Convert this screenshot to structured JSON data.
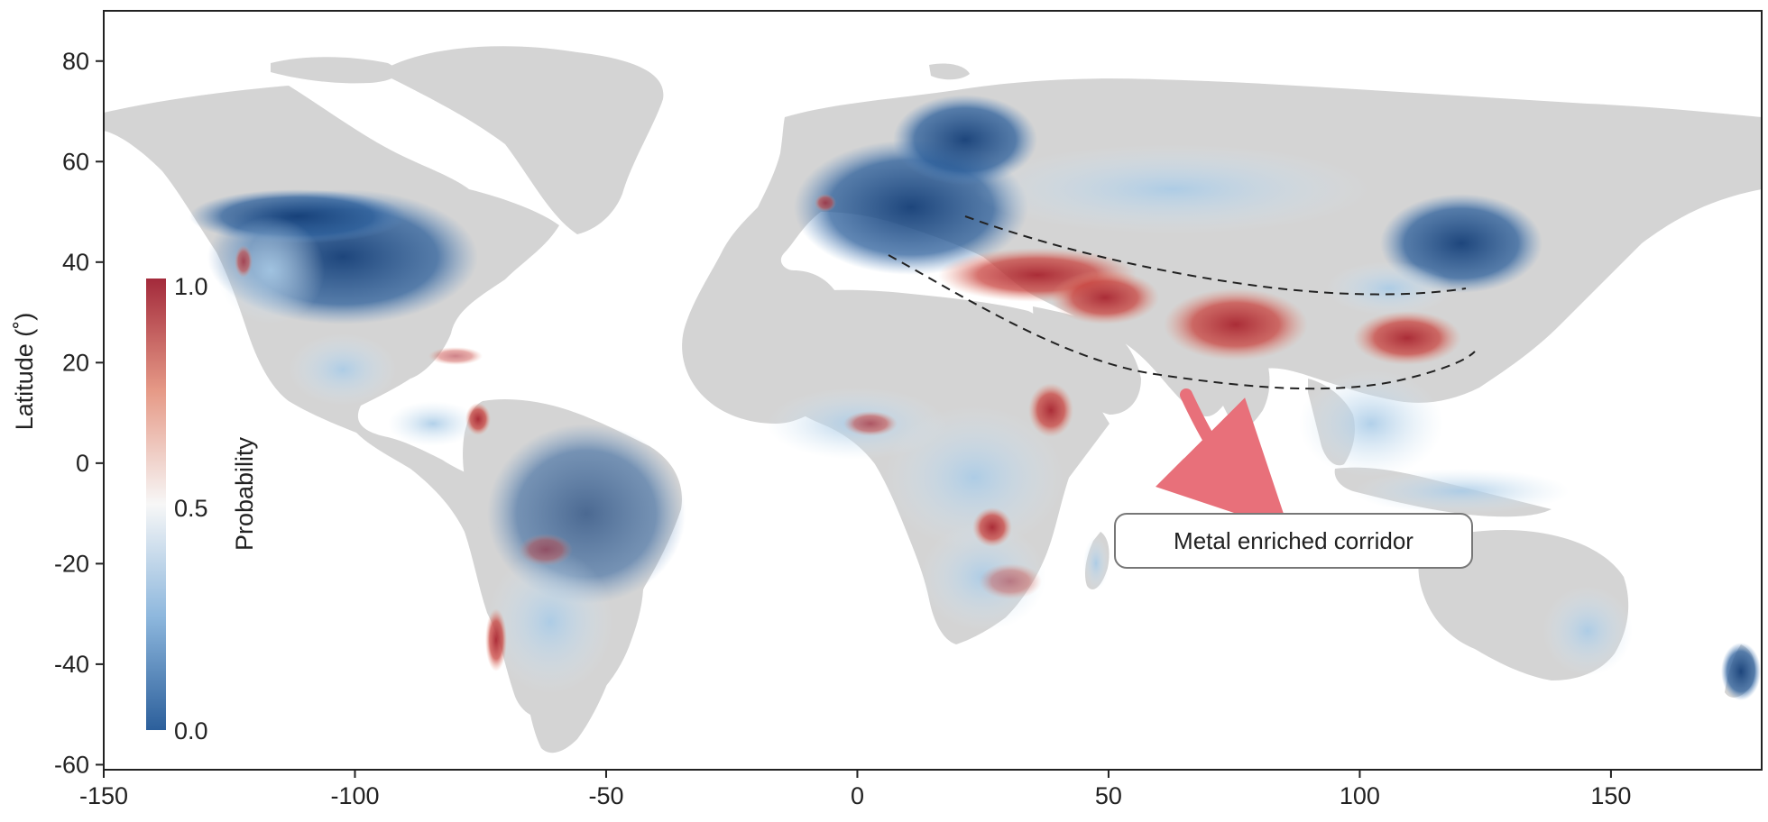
{
  "map": {
    "y_axis_label": "Latitude (˚)",
    "x_ticks": [
      "-150",
      "-100",
      "-50",
      "0",
      "50",
      "100",
      "150"
    ],
    "y_ticks": [
      "80",
      "60",
      "40",
      "20",
      "0",
      "-20",
      "-40",
      "-60"
    ],
    "x_range": [
      -150,
      180
    ],
    "y_range": [
      -61,
      90
    ],
    "land_color": "#d4d4d4",
    "ocean_color": "#ffffff"
  },
  "colorbar": {
    "label": "Probability",
    "ticks": [
      "1.0",
      "0.5",
      "0.0"
    ],
    "range": [
      0.0,
      1.0
    ],
    "color_low": "#2c5f9b",
    "color_mid": "#f7f7f7",
    "color_high": "#a32a3b"
  },
  "annotation": {
    "text": "Metal enriched corridor",
    "corridor_line_color": "#222222",
    "arrow_color": "#e8707a"
  }
}
